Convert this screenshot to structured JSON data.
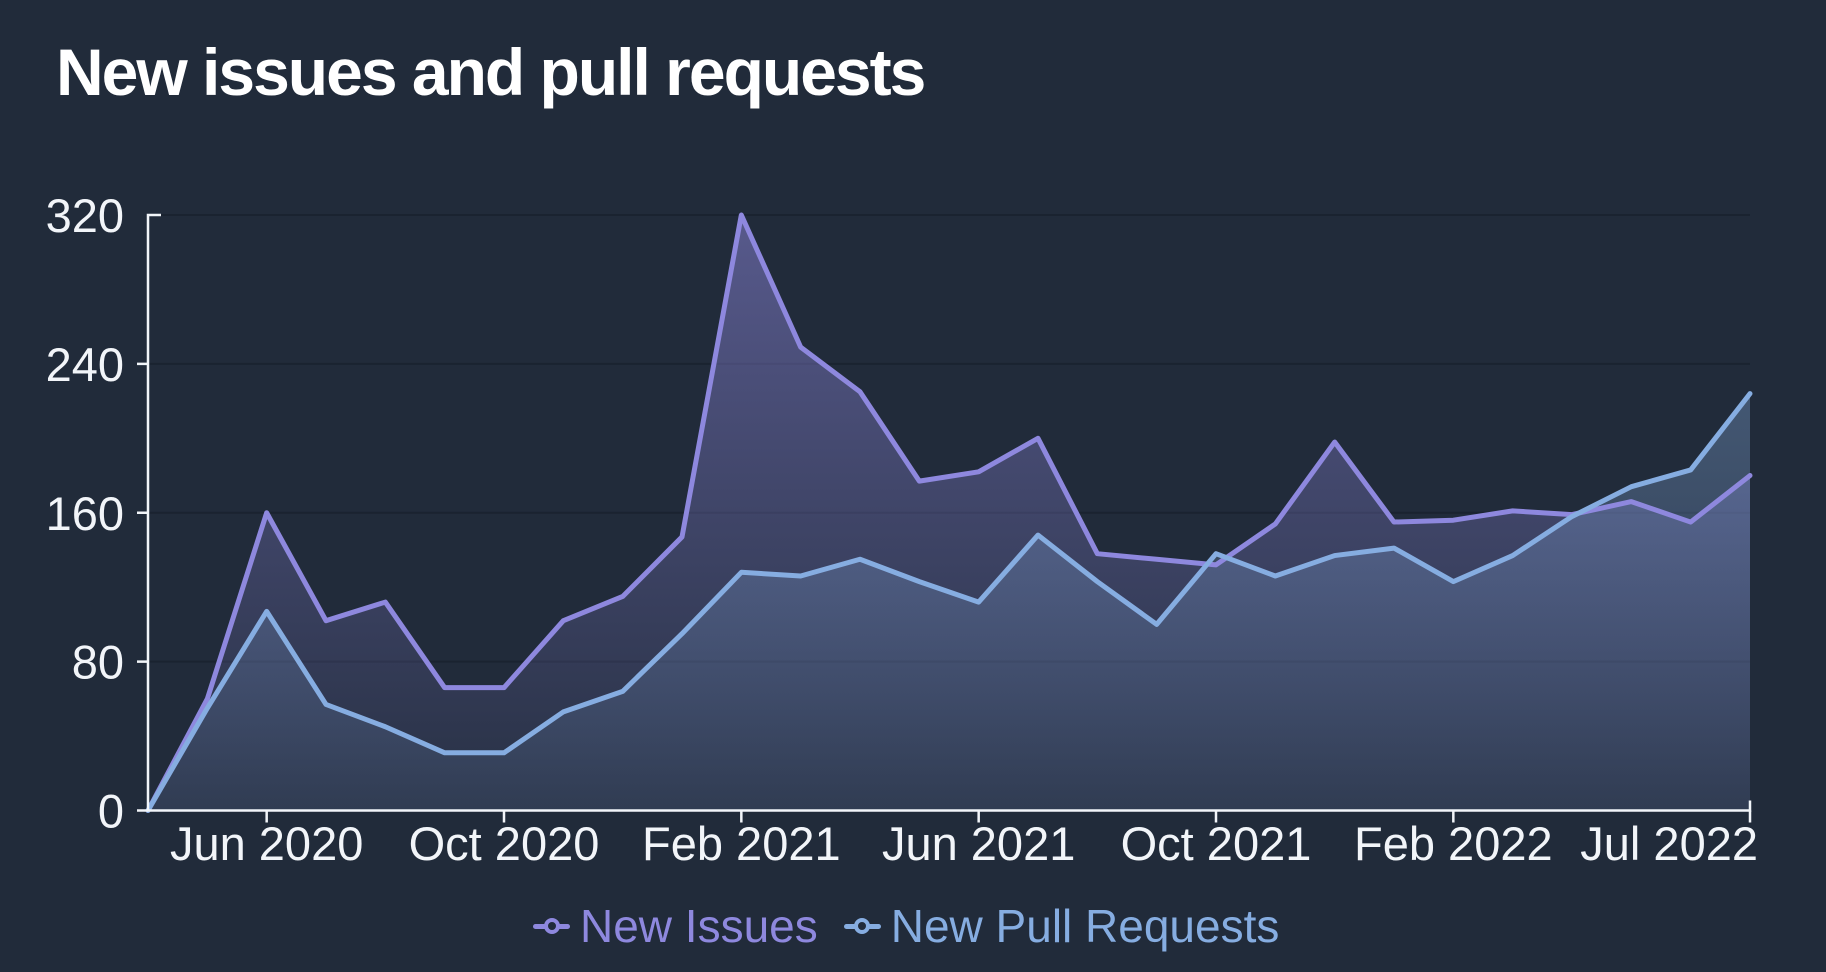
{
  "title": "New issues and pull requests",
  "colors": {
    "background": "#212b3a",
    "axis": "#f2f5f9",
    "grid": "#1a2330",
    "title": "#ffffff"
  },
  "legend": {
    "items": [
      "New Issues",
      "New Pull Requests"
    ]
  },
  "chart_data": {
    "type": "area",
    "title": "New issues and pull requests",
    "xlabel": "",
    "ylabel": "",
    "ylim": [
      0,
      320
    ],
    "y_ticks": [
      0,
      80,
      160,
      240,
      320
    ],
    "grid": "horizontal",
    "legend_position": "bottom",
    "categories": [
      "Apr 2020",
      "May 2020",
      "Jun 2020",
      "Jul 2020",
      "Aug 2020",
      "Sep 2020",
      "Oct 2020",
      "Nov 2020",
      "Dec 2020",
      "Jan 2021",
      "Feb 2021",
      "Mar 2021",
      "Apr 2021",
      "May 2021",
      "Jun 2021",
      "Jul 2021",
      "Aug 2021",
      "Sep 2021",
      "Oct 2021",
      "Nov 2021",
      "Dec 2021",
      "Jan 2022",
      "Feb 2022",
      "Mar 2022",
      "Apr 2022",
      "May 2022",
      "Jun 2022",
      "Jul 2022"
    ],
    "x_ticks": [
      {
        "index": 2,
        "label": "Jun 2020"
      },
      {
        "index": 6,
        "label": "Oct 2020"
      },
      {
        "index": 10,
        "label": "Feb 2021"
      },
      {
        "index": 14,
        "label": "Jun 2021"
      },
      {
        "index": 18,
        "label": "Oct 2021"
      },
      {
        "index": 22,
        "label": "Feb 2022"
      },
      {
        "index": 27,
        "label": "Jul 2022"
      }
    ],
    "series": [
      {
        "name": "New Issues",
        "color": "#8e88de",
        "fill_opacity_top": 0.5,
        "fill_opacity_bottom": 0.06,
        "values": [
          0,
          60,
          160,
          102,
          112,
          66,
          66,
          102,
          115,
          147,
          320,
          249,
          225,
          177,
          182,
          200,
          138,
          135,
          132,
          154,
          198,
          155,
          156,
          161,
          159,
          166,
          155,
          180
        ]
      },
      {
        "name": "New Pull Requests",
        "color": "#86ade1",
        "fill_opacity_top": 0.45,
        "fill_opacity_bottom": 0.09,
        "values": [
          0,
          55,
          107,
          57,
          45,
          31,
          31,
          53,
          64,
          95,
          128,
          126,
          135,
          123,
          112,
          148,
          123,
          100,
          138,
          126,
          137,
          141,
          123,
          137,
          158,
          174,
          183,
          224
        ]
      }
    ]
  }
}
